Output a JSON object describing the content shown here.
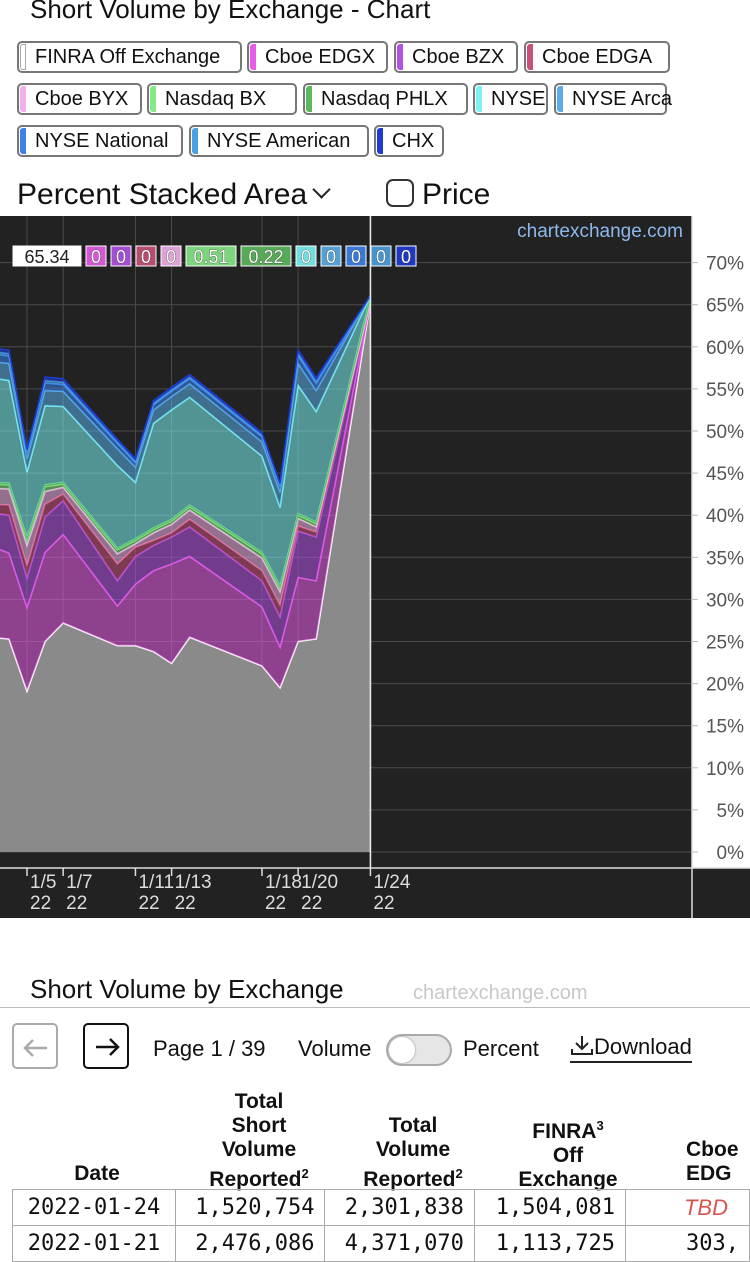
{
  "title": "Short Volume by Exchange - Chart",
  "legend": [
    {
      "label": "FINRA Off Exchange",
      "color": "#ffffff"
    },
    {
      "label": "Cboe EDGX",
      "color": "#e85ce8"
    },
    {
      "label": "Cboe BZX",
      "color": "#b452e6"
    },
    {
      "label": "Cboe EDGA",
      "color": "#c8507a"
    },
    {
      "label": "Cboe BYX",
      "color": "#f2b0ea"
    },
    {
      "label": "Nasdaq BX",
      "color": "#86e886"
    },
    {
      "label": "Nasdaq PHLX",
      "color": "#5cb85c"
    },
    {
      "label": "NYSE",
      "color": "#7af2f2"
    },
    {
      "label": "NYSE Arca",
      "color": "#5aaee8"
    },
    {
      "label": "NYSE National",
      "color": "#3c82ea"
    },
    {
      "label": "NYSE American",
      "color": "#4aa0e0"
    },
    {
      "label": "CHX",
      "color": "#1e3cd2"
    }
  ],
  "controls": {
    "chart_type": "Percent Stacked Area",
    "price_label": "Price",
    "price_checked": false
  },
  "chart_data": {
    "type": "area",
    "stacking": "percent",
    "title": "",
    "watermark": "chartexchange.com",
    "x": [
      "2022-01-03",
      "2022-01-04",
      "2022-01-05",
      "2022-01-06",
      "2022-01-07",
      "2022-01-10",
      "2022-01-11",
      "2022-01-12",
      "2022-01-13",
      "2022-01-14",
      "2022-01-18",
      "2022-01-19",
      "2022-01-20",
      "2022-01-21",
      "2022-01-24"
    ],
    "x_ticks": [
      {
        "x": "2022-01-05",
        "label": "1/5",
        "sub": "22"
      },
      {
        "x": "2022-01-07",
        "label": "1/7",
        "sub": "22"
      },
      {
        "x": "2022-01-11",
        "label": "1/11",
        "sub": "22"
      },
      {
        "x": "2022-01-13",
        "label": "1/13",
        "sub": "22"
      },
      {
        "x": "2022-01-18",
        "label": "1/18",
        "sub": "22"
      },
      {
        "x": "2022-01-20",
        "label": "1/20",
        "sub": "22"
      },
      {
        "x": "2022-01-24",
        "label": "1/24",
        "sub": "22"
      }
    ],
    "ylim": [
      0,
      72
    ],
    "y_ticks": [
      0,
      5,
      10,
      15,
      20,
      25,
      30,
      35,
      40,
      45,
      50,
      55,
      60,
      65,
      70
    ],
    "y_tick_suffix": "%",
    "grid": true,
    "series": [
      {
        "name": "FINRA Off Exchange",
        "color": "#ffffff",
        "values": [
          25.5,
          25.3,
          19.1,
          25.0,
          27.2,
          24.5,
          24.5,
          23.8,
          22.4,
          25.5,
          22.1,
          19.5,
          25.0,
          25.3,
          65.34
        ]
      },
      {
        "name": "Cboe EDGX",
        "color": "#e85ce8",
        "values": [
          10.8,
          10.2,
          9.9,
          10.6,
          10.5,
          4.7,
          7.3,
          9.6,
          11.8,
          9.6,
          7.0,
          4.8,
          7.6,
          6.9,
          0
        ]
      },
      {
        "name": "Cboe BZX",
        "color": "#b452e6",
        "values": [
          4.0,
          4.5,
          3.5,
          4.2,
          4.0,
          3.0,
          3.3,
          3.0,
          3.2,
          3.5,
          3.1,
          3.6,
          5.5,
          5.2,
          0
        ]
      },
      {
        "name": "Cboe EDGA",
        "color": "#c8507a",
        "values": [
          1.0,
          1.2,
          1.5,
          1.5,
          0.8,
          2.0,
          1.1,
          0.6,
          0.5,
          0.9,
          1.2,
          1.4,
          0.6,
          0.6,
          0
        ]
      },
      {
        "name": "Cboe BYX",
        "color": "#f2b0ea",
        "values": [
          1.9,
          1.9,
          2.4,
          1.5,
          0.8,
          1.2,
          0.4,
          0.9,
          1.0,
          1.1,
          1.5,
          1.6,
          0.9,
          0.6,
          0
        ]
      },
      {
        "name": "Nasdaq BX",
        "color": "#86e886",
        "values": [
          0.5,
          0.5,
          0.7,
          0.6,
          0.4,
          0.5,
          0.4,
          0.4,
          0.4,
          0.4,
          0.5,
          0.5,
          0.4,
          0.4,
          0.51
        ]
      },
      {
        "name": "Nasdaq PHLX",
        "color": "#5cb85c",
        "values": [
          0.2,
          0.2,
          0.3,
          0.2,
          0.2,
          0.2,
          0.2,
          0.2,
          0.2,
          0.2,
          0.2,
          0.2,
          0.2,
          0.2,
          0.22
        ]
      },
      {
        "name": "NYSE",
        "color": "#7af2f2",
        "values": [
          12.4,
          12.2,
          7.7,
          9.4,
          9.0,
          9.8,
          6.7,
          12.4,
          13.0,
          12.8,
          11.4,
          9.3,
          15.2,
          13.1,
          0
        ]
      },
      {
        "name": "NYSE Arca",
        "color": "#5aaee8",
        "values": [
          2.0,
          2.0,
          1.6,
          1.8,
          1.8,
          2.0,
          1.8,
          1.6,
          1.6,
          1.6,
          1.7,
          1.8,
          2.6,
          2.5,
          0
        ]
      },
      {
        "name": "NYSE National",
        "color": "#3c82ea",
        "values": [
          0.9,
          0.9,
          0.6,
          0.9,
          0.8,
          0.6,
          0.5,
          0.6,
          0.6,
          0.6,
          0.6,
          0.6,
          0.9,
          0.8,
          0
        ]
      },
      {
        "name": "NYSE American",
        "color": "#4aa0e0",
        "values": [
          0.3,
          0.3,
          0.2,
          0.3,
          0.3,
          0.2,
          0.2,
          0.2,
          0.2,
          0.2,
          0.2,
          0.2,
          0.3,
          0.3,
          0
        ]
      },
      {
        "name": "CHX",
        "color": "#1e3cd2",
        "values": [
          0.4,
          0.4,
          0.3,
          0.4,
          0.4,
          0.3,
          0.3,
          0.3,
          0.3,
          0.3,
          0.3,
          0.3,
          0.4,
          0.4,
          0
        ]
      }
    ],
    "hover_labels": [
      "65.34",
      "0",
      "0",
      "0",
      "0",
      "0.51",
      "0.22",
      "0",
      "0",
      "0",
      "0",
      "0"
    ]
  },
  "table_section": {
    "title": "Short Volume by Exchange",
    "watermark": "chartexchange.com",
    "page_label": "Page 1 / 39",
    "volume_label": "Volume",
    "percent_label": "Percent",
    "download_label": "Download",
    "headers": [
      {
        "lines": [
          "Date"
        ],
        "sup": ""
      },
      {
        "lines": [
          "Total",
          "Short",
          "Volume",
          "Reported"
        ],
        "sup": "2"
      },
      {
        "lines": [
          "Total",
          "Volume",
          "Reported"
        ],
        "sup": "2"
      },
      {
        "lines": [
          "FINRA",
          "Off",
          "Exchange"
        ],
        "sup": "3"
      },
      {
        "lines": [
          "Cboe",
          "EDG"
        ],
        "sup": ""
      }
    ],
    "rows": [
      [
        "2022-01-24",
        "1,520,754",
        "2,301,838",
        "1,504,081",
        "TBD"
      ],
      [
        "2022-01-21",
        "2,476,086",
        "4,371,070",
        "1,113,725",
        "303,"
      ]
    ]
  }
}
